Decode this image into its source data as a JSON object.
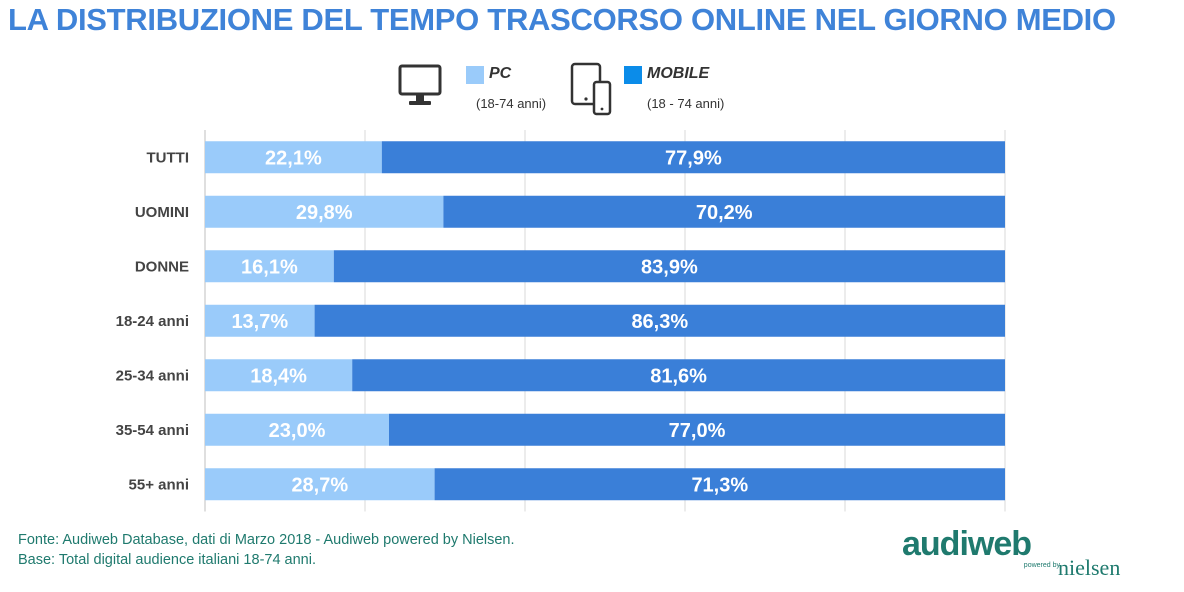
{
  "title": "LA DISTRIBUZIONE DEL TEMPO TRASCORSO ONLINE NEL GIORNO MEDIO",
  "legend": {
    "pc": {
      "label": "PC",
      "sub": "(18-74 anni)",
      "color": "#9ACBFA",
      "icon": "desktop-monitor-icon"
    },
    "mobile": {
      "label": "MOBILE",
      "sub": "(18 - 74 anni)",
      "color": "#0B8CE9",
      "icon": "tablet-smartphone-icon"
    }
  },
  "chart_data": {
    "type": "bar",
    "orientation": "horizontal",
    "stacked": true,
    "categories": [
      "TUTTI",
      "UOMINI",
      "DONNE",
      "18-24 anni",
      "25-34 anni",
      "35-54 anni",
      "55+ anni"
    ],
    "series": [
      {
        "name": "PC",
        "values": [
          22.1,
          29.8,
          16.1,
          13.7,
          18.4,
          23.0,
          28.7
        ],
        "labels": [
          "22,1%",
          "29,8%",
          "16,1%",
          "13,7%",
          "18,4%",
          "23,0%",
          "28,7%"
        ],
        "color": "#9ACBFA"
      },
      {
        "name": "MOBILE",
        "values": [
          77.9,
          70.2,
          83.9,
          86.3,
          81.6,
          77.0,
          71.3
        ],
        "labels": [
          "77,9%",
          "70,2%",
          "83,9%",
          "86,3%",
          "81,6%",
          "77,0%",
          "71,3%"
        ],
        "color": "#3A7FD8"
      }
    ],
    "xlim": [
      0,
      100
    ],
    "grid": true
  },
  "footer": {
    "line1": "Fonte: Audiweb Database, dati di Marzo 2018 - Audiweb powered by Nielsen.",
    "line2": "Base: Total digital audience italiani 18-74 anni."
  },
  "logo": {
    "brand": "audiweb",
    "powered": "powered by",
    "nielsen": "nielsen"
  }
}
